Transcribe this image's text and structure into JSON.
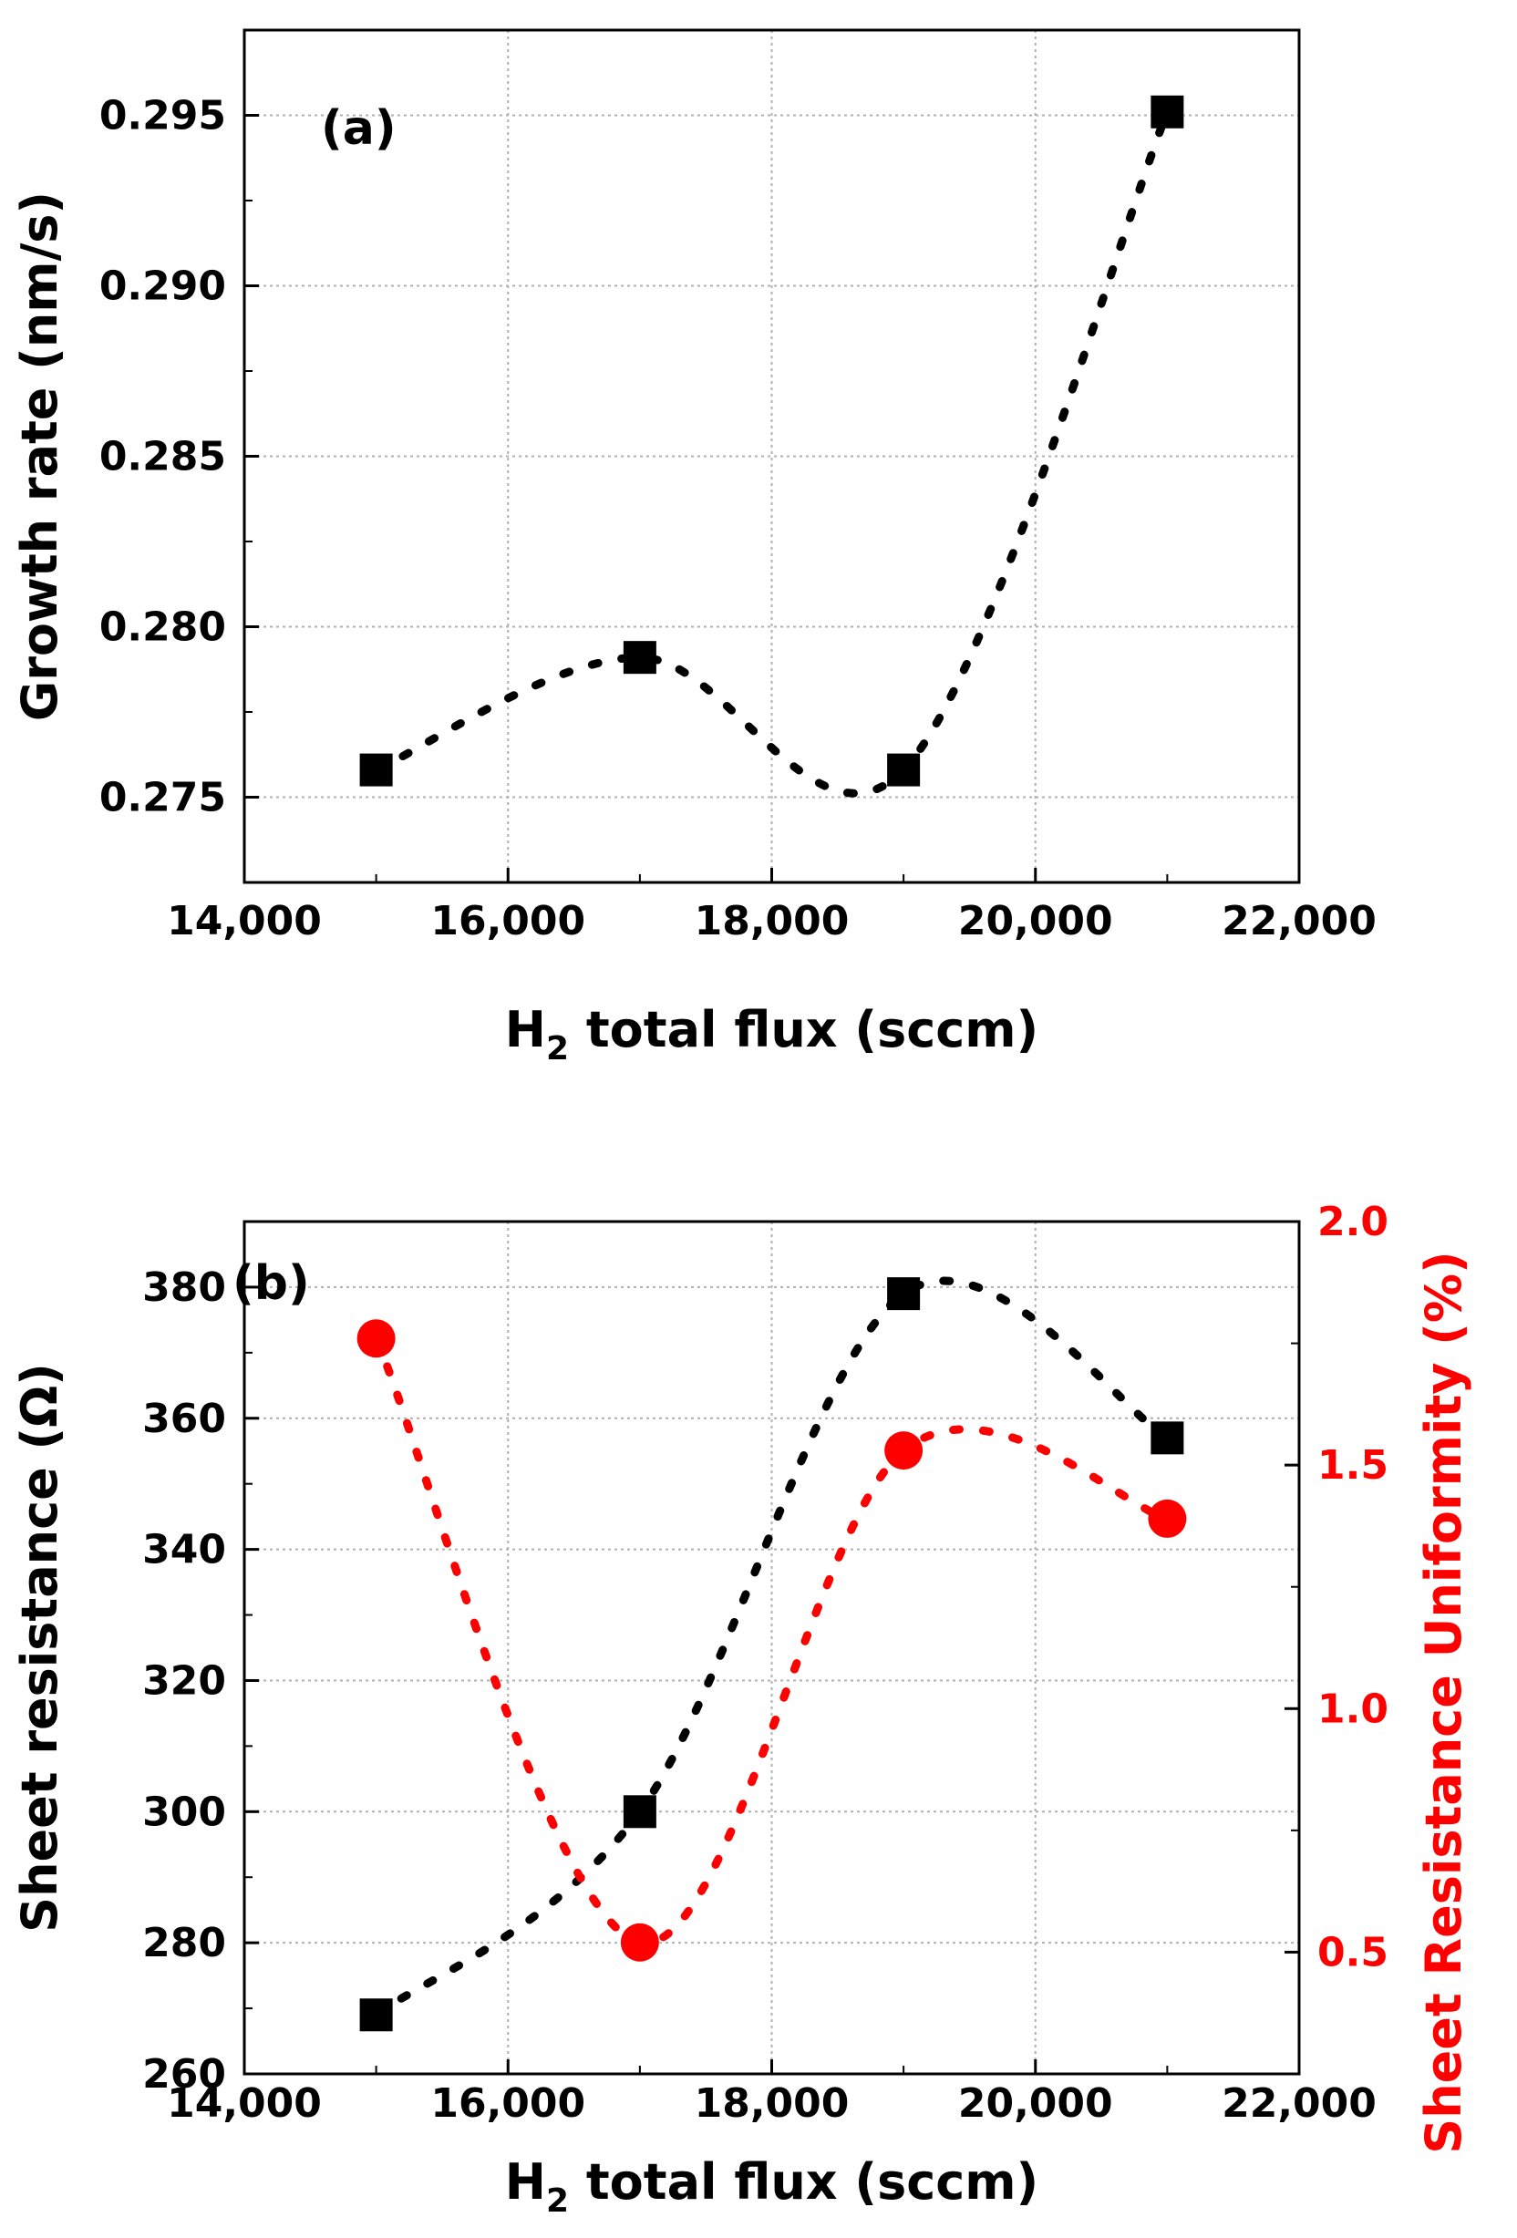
{
  "chart_data": [
    {
      "type": "line",
      "panel_label": "(a)",
      "title": "",
      "xlabel": "H",
      "xlabel_sub": "2",
      "xlabel_rest": " total flux (sccm)",
      "ylabel": "Growth rate (nm/s)",
      "xlim": [
        14000,
        22000
      ],
      "ylim": [
        0.2725,
        0.2975
      ],
      "xticks": [
        14000,
        16000,
        18000,
        20000,
        22000
      ],
      "xtick_labels": [
        "14,000",
        "16,000",
        "18,000",
        "20,000",
        "22,000"
      ],
      "yticks": [
        0.275,
        0.28,
        0.285,
        0.29,
        0.295
      ],
      "ytick_labels": [
        "0.275",
        "0.280",
        "0.285",
        "0.290",
        "0.295"
      ],
      "grid": true,
      "series": [
        {
          "name": "Growth rate",
          "color": "#000000",
          "marker": "square",
          "line": "dotted-spline",
          "x": [
            15000,
            17000,
            19000,
            21000
          ],
          "values": [
            0.2758,
            0.2791,
            0.2758,
            0.2951
          ]
        }
      ]
    },
    {
      "type": "line",
      "panel_label": "(b)",
      "title": "",
      "xlabel": "H",
      "xlabel_sub": "2",
      "xlabel_rest": " total flux (sccm)",
      "ylabel": "Sheet resistance (Ω)",
      "ylabel_right": "Sheet Resistance Uniformity (%)",
      "xlim": [
        14000,
        22000
      ],
      "ylim": [
        260,
        390
      ],
      "ylim_right": [
        0.25,
        2.0
      ],
      "xticks": [
        14000,
        16000,
        18000,
        20000,
        22000
      ],
      "xtick_labels": [
        "14,000",
        "16,000",
        "18,000",
        "20,000",
        "22,000"
      ],
      "yticks": [
        260,
        280,
        300,
        320,
        340,
        360,
        380
      ],
      "ytick_labels": [
        "260",
        "280",
        "300",
        "320",
        "340",
        "360",
        "380"
      ],
      "yticks_right": [
        0.5,
        1.0,
        1.5,
        2.0
      ],
      "ytick_labels_right": [
        "0.5",
        "1.0",
        "1.5",
        "2.0"
      ],
      "grid": true,
      "series": [
        {
          "name": "Sheet resistance",
          "axis": "left",
          "color": "#000000",
          "marker": "square",
          "line": "dotted-spline",
          "x": [
            15000,
            17000,
            19000,
            21000
          ],
          "values": [
            269,
            300,
            379,
            357
          ]
        },
        {
          "name": "Sheet Resistance Uniformity",
          "axis": "right",
          "color": "#ff0000",
          "marker": "circle",
          "line": "dotted-spline",
          "x": [
            15000,
            17000,
            19000,
            21000
          ],
          "values": [
            1.76,
            0.52,
            1.53,
            1.39
          ]
        }
      ]
    }
  ]
}
